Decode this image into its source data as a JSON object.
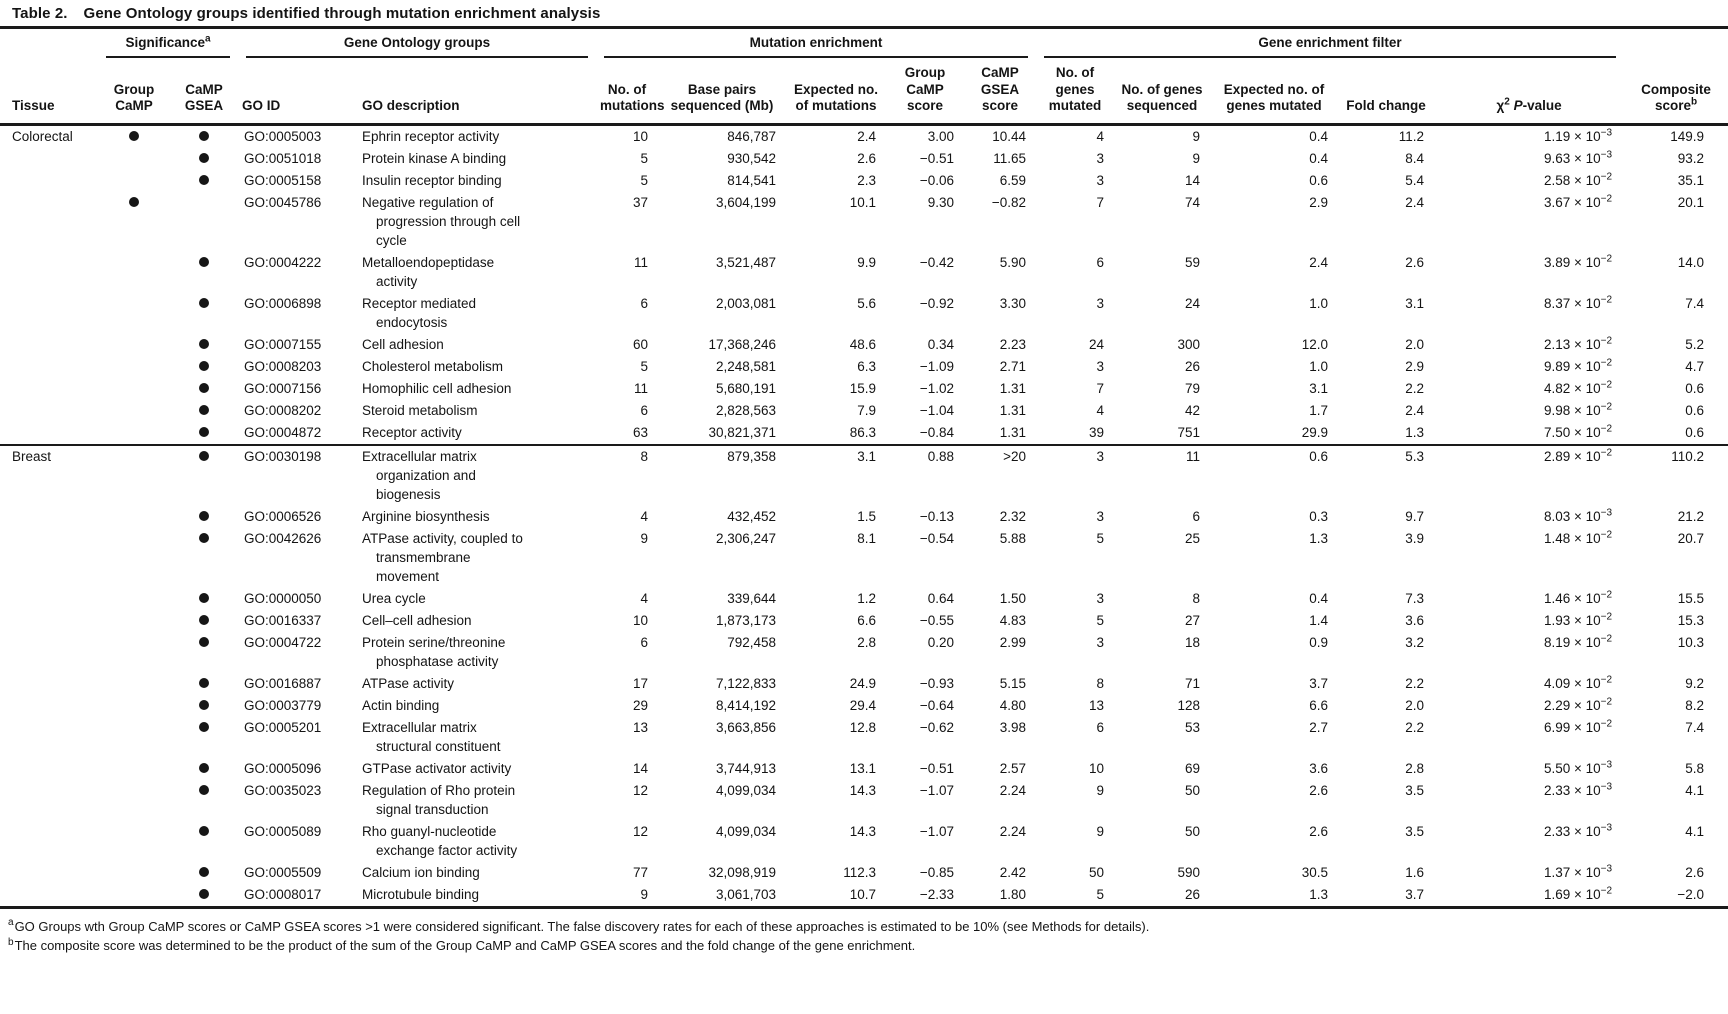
{
  "title": {
    "label": "Table 2.",
    "text": "Gene Ontology groups identified through mutation enrichment analysis"
  },
  "notation": {
    "times": "×",
    "base": "10"
  },
  "header": {
    "groups": [
      {
        "label": "",
        "span": 1
      },
      {
        "label": "Significance",
        "sup": "a",
        "span": 2
      },
      {
        "label": "Gene Ontology groups",
        "span": 2
      },
      {
        "label": "Mutation enrichment",
        "span": 5
      },
      {
        "label": "Gene enrichment filter",
        "span": 5
      },
      {
        "label": "",
        "span": 1
      }
    ],
    "columns": [
      {
        "label": "Tissue",
        "align": "left"
      },
      {
        "label": "Group CaMP",
        "align": "center"
      },
      {
        "label": "CaMP GSEA",
        "align": "center"
      },
      {
        "label": "GO ID",
        "align": "left"
      },
      {
        "label": "GO description",
        "align": "left"
      },
      {
        "label": "No. of mutations",
        "align": "right"
      },
      {
        "label": "Base pairs sequenced (Mb)",
        "align": "right"
      },
      {
        "label": "Expected no. of mutations",
        "align": "right"
      },
      {
        "label": "Group CaMP score",
        "align": "right"
      },
      {
        "label": "CaMP GSEA score",
        "align": "right"
      },
      {
        "label": "No. of genes mutated",
        "align": "right"
      },
      {
        "label": "No. of genes sequenced",
        "align": "right"
      },
      {
        "label": "Expected no. of genes mutated",
        "align": "right"
      },
      {
        "label": "Fold change",
        "align": "right"
      },
      {
        "label": "chi-squared P-value",
        "align": "right",
        "special": "chi"
      },
      {
        "label": "Composite score",
        "sup": "b",
        "align": "right"
      }
    ],
    "chi": {
      "chi": "χ",
      "sq": "2",
      "p": "P",
      "tail": "-value"
    }
  },
  "sections": [
    {
      "tissue": "Colorectal",
      "rows": [
        {
          "gc": true,
          "gg": true,
          "id": "GO:0005003",
          "de": "Ephrin receptor activity",
          "mu": "10",
          "bp": "846,787",
          "em": "2.4",
          "gs": "3.00",
          "ge": "10.44",
          "nm": "4",
          "ns": "9",
          "eg": "0.4",
          "fc": "11.2",
          "pm": "1.19",
          "pe": "−3",
          "cs": "149.9"
        },
        {
          "gc": false,
          "gg": true,
          "id": "GO:0051018",
          "de": "Protein kinase A binding",
          "mu": "5",
          "bp": "930,542",
          "em": "2.6",
          "gs": "−0.51",
          "ge": "11.65",
          "nm": "3",
          "ns": "9",
          "eg": "0.4",
          "fc": "8.4",
          "pm": "9.63",
          "pe": "−3",
          "cs": "93.2"
        },
        {
          "gc": false,
          "gg": true,
          "id": "GO:0005158",
          "de": "Insulin receptor binding",
          "mu": "5",
          "bp": "814,541",
          "em": "2.3",
          "gs": "−0.06",
          "ge": "6.59",
          "nm": "3",
          "ns": "14",
          "eg": "0.6",
          "fc": "5.4",
          "pm": "2.58",
          "pe": "−2",
          "cs": "35.1"
        },
        {
          "gc": true,
          "gg": false,
          "id": "GO:0045786",
          "de": "Negative regulation of progression through cell cycle",
          "mu": "37",
          "bp": "3,604,199",
          "em": "10.1",
          "gs": "9.30",
          "ge": "−0.82",
          "nm": "7",
          "ns": "74",
          "eg": "2.9",
          "fc": "2.4",
          "pm": "3.67",
          "pe": "−2",
          "cs": "20.1"
        },
        {
          "gc": false,
          "gg": true,
          "id": "GO:0004222",
          "de": "Metalloendopeptidase activity",
          "mu": "11",
          "bp": "3,521,487",
          "em": "9.9",
          "gs": "−0.42",
          "ge": "5.90",
          "nm": "6",
          "ns": "59",
          "eg": "2.4",
          "fc": "2.6",
          "pm": "3.89",
          "pe": "−2",
          "cs": "14.0"
        },
        {
          "gc": false,
          "gg": true,
          "id": "GO:0006898",
          "de": "Receptor mediated endocytosis",
          "mu": "6",
          "bp": "2,003,081",
          "em": "5.6",
          "gs": "−0.92",
          "ge": "3.30",
          "nm": "3",
          "ns": "24",
          "eg": "1.0",
          "fc": "3.1",
          "pm": "8.37",
          "pe": "−2",
          "cs": "7.4"
        },
        {
          "gc": false,
          "gg": true,
          "id": "GO:0007155",
          "de": "Cell adhesion",
          "mu": "60",
          "bp": "17,368,246",
          "em": "48.6",
          "gs": "0.34",
          "ge": "2.23",
          "nm": "24",
          "ns": "300",
          "eg": "12.0",
          "fc": "2.0",
          "pm": "2.13",
          "pe": "−2",
          "cs": "5.2"
        },
        {
          "gc": false,
          "gg": true,
          "id": "GO:0008203",
          "de": "Cholesterol metabolism",
          "mu": "5",
          "bp": "2,248,581",
          "em": "6.3",
          "gs": "−1.09",
          "ge": "2.71",
          "nm": "3",
          "ns": "26",
          "eg": "1.0",
          "fc": "2.9",
          "pm": "9.89",
          "pe": "−2",
          "cs": "4.7"
        },
        {
          "gc": false,
          "gg": true,
          "id": "GO:0007156",
          "de": "Homophilic cell adhesion",
          "mu": "11",
          "bp": "5,680,191",
          "em": "15.9",
          "gs": "−1.02",
          "ge": "1.31",
          "nm": "7",
          "ns": "79",
          "eg": "3.1",
          "fc": "2.2",
          "pm": "4.82",
          "pe": "−2",
          "cs": "0.6"
        },
        {
          "gc": false,
          "gg": true,
          "id": "GO:0008202",
          "de": "Steroid metabolism",
          "mu": "6",
          "bp": "2,828,563",
          "em": "7.9",
          "gs": "−1.04",
          "ge": "1.31",
          "nm": "4",
          "ns": "42",
          "eg": "1.7",
          "fc": "2.4",
          "pm": "9.98",
          "pe": "−2",
          "cs": "0.6"
        },
        {
          "gc": false,
          "gg": true,
          "id": "GO:0004872",
          "de": "Receptor activity",
          "mu": "63",
          "bp": "30,821,371",
          "em": "86.3",
          "gs": "−0.84",
          "ge": "1.31",
          "nm": "39",
          "ns": "751",
          "eg": "29.9",
          "fc": "1.3",
          "pm": "7.50",
          "pe": "−2",
          "cs": "0.6"
        }
      ]
    },
    {
      "tissue": "Breast",
      "rows": [
        {
          "gc": false,
          "gg": true,
          "id": "GO:0030198",
          "de": "Extracellular matrix organization and biogenesis",
          "mu": "8",
          "bp": "879,358",
          "em": "3.1",
          "gs": "0.88",
          "ge": ">20",
          "nm": "3",
          "ns": "11",
          "eg": "0.6",
          "fc": "5.3",
          "pm": "2.89",
          "pe": "−2",
          "cs": "110.2"
        },
        {
          "gc": false,
          "gg": true,
          "id": "GO:0006526",
          "de": "Arginine biosynthesis",
          "mu": "4",
          "bp": "432,452",
          "em": "1.5",
          "gs": "−0.13",
          "ge": "2.32",
          "nm": "3",
          "ns": "6",
          "eg": "0.3",
          "fc": "9.7",
          "pm": "8.03",
          "pe": "−3",
          "cs": "21.2"
        },
        {
          "gc": false,
          "gg": true,
          "id": "GO:0042626",
          "de": "ATPase activity, coupled to transmembrane movement",
          "mu": "9",
          "bp": "2,306,247",
          "em": "8.1",
          "gs": "−0.54",
          "ge": "5.88",
          "nm": "5",
          "ns": "25",
          "eg": "1.3",
          "fc": "3.9",
          "pm": "1.48",
          "pe": "−2",
          "cs": "20.7"
        },
        {
          "gc": false,
          "gg": true,
          "id": "GO:0000050",
          "de": "Urea cycle",
          "mu": "4",
          "bp": "339,644",
          "em": "1.2",
          "gs": "0.64",
          "ge": "1.50",
          "nm": "3",
          "ns": "8",
          "eg": "0.4",
          "fc": "7.3",
          "pm": "1.46",
          "pe": "−2",
          "cs": "15.5"
        },
        {
          "gc": false,
          "gg": true,
          "id": "GO:0016337",
          "de": "Cell–cell adhesion",
          "mu": "10",
          "bp": "1,873,173",
          "em": "6.6",
          "gs": "−0.55",
          "ge": "4.83",
          "nm": "5",
          "ns": "27",
          "eg": "1.4",
          "fc": "3.6",
          "pm": "1.93",
          "pe": "−2",
          "cs": "15.3"
        },
        {
          "gc": false,
          "gg": true,
          "id": "GO:0004722",
          "de": "Protein serine/threonine phosphatase activity",
          "mu": "6",
          "bp": "792,458",
          "em": "2.8",
          "gs": "0.20",
          "ge": "2.99",
          "nm": "3",
          "ns": "18",
          "eg": "0.9",
          "fc": "3.2",
          "pm": "8.19",
          "pe": "−2",
          "cs": "10.3"
        },
        {
          "gc": false,
          "gg": true,
          "id": "GO:0016887",
          "de": "ATPase activity",
          "mu": "17",
          "bp": "7,122,833",
          "em": "24.9",
          "gs": "−0.93",
          "ge": "5.15",
          "nm": "8",
          "ns": "71",
          "eg": "3.7",
          "fc": "2.2",
          "pm": "4.09",
          "pe": "−2",
          "cs": "9.2"
        },
        {
          "gc": false,
          "gg": true,
          "id": "GO:0003779",
          "de": "Actin binding",
          "mu": "29",
          "bp": "8,414,192",
          "em": "29.4",
          "gs": "−0.64",
          "ge": "4.80",
          "nm": "13",
          "ns": "128",
          "eg": "6.6",
          "fc": "2.0",
          "pm": "2.29",
          "pe": "−2",
          "cs": "8.2"
        },
        {
          "gc": false,
          "gg": true,
          "id": "GO:0005201",
          "de": "Extracellular matrix structural constituent",
          "mu": "13",
          "bp": "3,663,856",
          "em": "12.8",
          "gs": "−0.62",
          "ge": "3.98",
          "nm": "6",
          "ns": "53",
          "eg": "2.7",
          "fc": "2.2",
          "pm": "6.99",
          "pe": "−2",
          "cs": "7.4"
        },
        {
          "gc": false,
          "gg": true,
          "id": "GO:0005096",
          "de": "GTPase activator activity",
          "mu": "14",
          "bp": "3,744,913",
          "em": "13.1",
          "gs": "−0.51",
          "ge": "2.57",
          "nm": "10",
          "ns": "69",
          "eg": "3.6",
          "fc": "2.8",
          "pm": "5.50",
          "pe": "−3",
          "cs": "5.8"
        },
        {
          "gc": false,
          "gg": true,
          "id": "GO:0035023",
          "de": "Regulation of Rho protein signal transduction",
          "mu": "12",
          "bp": "4,099,034",
          "em": "14.3",
          "gs": "−1.07",
          "ge": "2.24",
          "nm": "9",
          "ns": "50",
          "eg": "2.6",
          "fc": "3.5",
          "pm": "2.33",
          "pe": "−3",
          "cs": "4.1"
        },
        {
          "gc": false,
          "gg": true,
          "id": "GO:0005089",
          "de": "Rho guanyl-nucleotide exchange factor activity",
          "mu": "12",
          "bp": "4,099,034",
          "em": "14.3",
          "gs": "−1.07",
          "ge": "2.24",
          "nm": "9",
          "ns": "50",
          "eg": "2.6",
          "fc": "3.5",
          "pm": "2.33",
          "pe": "−3",
          "cs": "4.1"
        },
        {
          "gc": false,
          "gg": true,
          "id": "GO:0005509",
          "de": "Calcium ion binding",
          "mu": "77",
          "bp": "32,098,919",
          "em": "112.3",
          "gs": "−0.85",
          "ge": "2.42",
          "nm": "50",
          "ns": "590",
          "eg": "30.5",
          "fc": "1.6",
          "pm": "1.37",
          "pe": "−3",
          "cs": "2.6"
        },
        {
          "gc": false,
          "gg": true,
          "id": "GO:0008017",
          "de": "Microtubule binding",
          "mu": "9",
          "bp": "3,061,703",
          "em": "10.7",
          "gs": "−2.33",
          "ge": "1.80",
          "nm": "5",
          "ns": "26",
          "eg": "1.3",
          "fc": "3.7",
          "pm": "1.69",
          "pe": "−2",
          "cs": "−2.0"
        }
      ]
    }
  ],
  "footnotes": [
    {
      "sup": "a",
      "text": "GO Groups wth Group CaMP scores or CaMP GSEA scores >1 were considered significant. The false discovery rates for each of these approaches is estimated to be 10% (see Methods for details)."
    },
    {
      "sup": "b",
      "text": "The composite score was determined to be the product of the sum of the Group CaMP and CaMP GSEA scores and the fold change of the gene enrichment."
    }
  ]
}
